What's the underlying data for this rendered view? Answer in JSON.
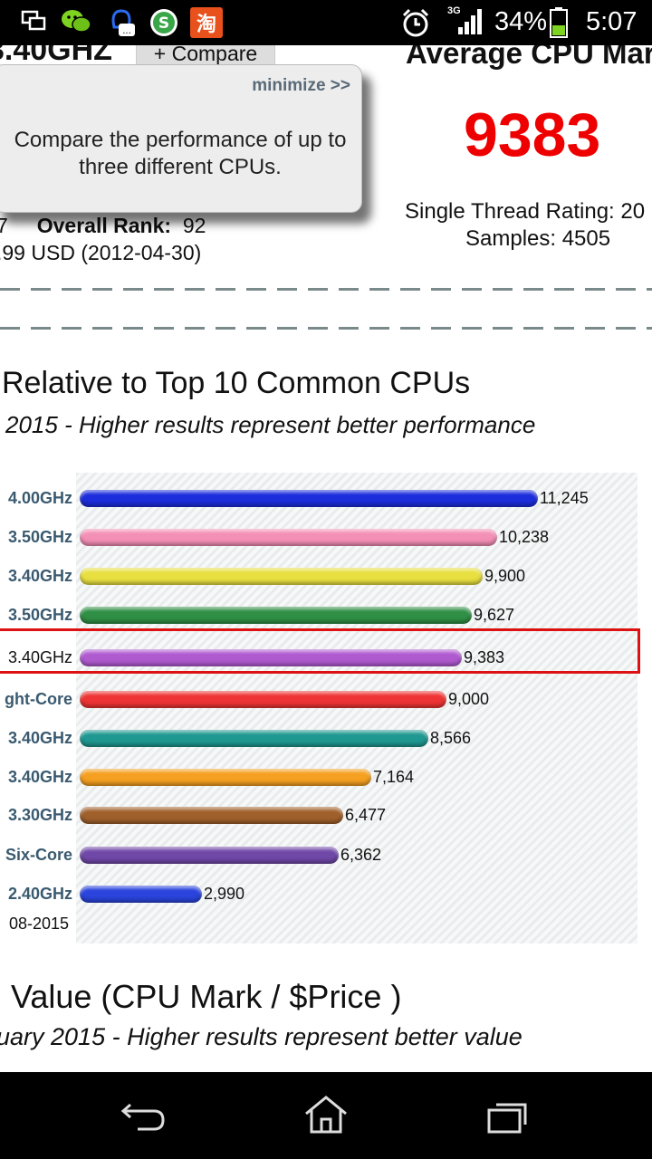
{
  "status_bar": {
    "network": "3G",
    "battery": "34%",
    "time": "5:07",
    "icons": [
      "screen-mirror-icon",
      "wechat-icon",
      "qq-icon",
      "money-app-icon",
      "taobao-icon",
      "alarm-icon",
      "signal-icon",
      "battery-icon"
    ]
  },
  "header": {
    "cpu_name_fragment": "3.40GHZ",
    "compare_button": "+ Compare",
    "rank_fragment": "7",
    "overall_rank_label": "Overall Rank:",
    "overall_rank_value": "92",
    "price_fragment": ".99 USD (2012-04-30)"
  },
  "average": {
    "label": "Average CPU Mar",
    "value": "9383",
    "single_thread": "Single Thread Rating: 20",
    "samples": "Samples: 4505"
  },
  "tooltip": {
    "minimize": "minimize >>",
    "message": "Compare the performance of up to three different CPUs."
  },
  "relative_section": {
    "title": "Relative to Top 10 Common CPUs",
    "subtitle": "2015 - Higher results represent better performance",
    "date_label": "08-2015"
  },
  "value_section": {
    "title": "Value (CPU Mark / $Price )",
    "subtitle": "uary 2015 - Higher results represent better value"
  },
  "chart_data": {
    "type": "bar",
    "orientation": "horizontal",
    "categories": [
      "4.00GHz",
      "3.50GHz",
      "3.40GHz",
      "3.50GHz",
      "3.40GHz",
      "ght-Core",
      "3.40GHz",
      "3.40GHz",
      "3.30GHz",
      "Six-Core",
      "2.40GHz"
    ],
    "values": [
      11245,
      10238,
      9900,
      9627,
      9383,
      9000,
      8566,
      7164,
      6477,
      6362,
      2990
    ],
    "value_labels": [
      "11,245",
      "10,238",
      "9,900",
      "9,627",
      "9,383",
      "9,000",
      "8,566",
      "7,164",
      "6,477",
      "6,362",
      "2,990"
    ],
    "colors": [
      "#1c2ddb",
      "#f48fb5",
      "#e8e040",
      "#2f8f45",
      "#b05ad0",
      "#ee3434",
      "#1e9890",
      "#f5a020",
      "#a0602c",
      "#7048a8",
      "#2a44dd"
    ],
    "highlight_index": 4,
    "xlim": [
      0,
      11245
    ]
  },
  "nav": {
    "icons": [
      "back-icon",
      "home-icon",
      "recent-apps-icon"
    ]
  }
}
